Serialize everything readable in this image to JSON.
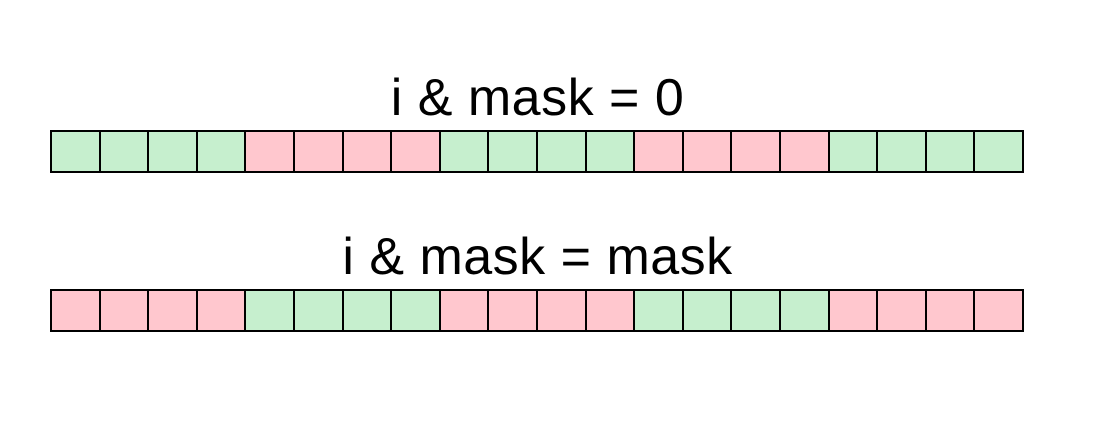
{
  "diagram": {
    "colors": {
      "green": "#c6efce",
      "pink": "#ffc7ce",
      "border": "#000000"
    },
    "rows": [
      {
        "id": "top",
        "label": "i & mask = 0",
        "cells": [
          "green",
          "green",
          "green",
          "green",
          "pink",
          "pink",
          "pink",
          "pink",
          "green",
          "green",
          "green",
          "green",
          "pink",
          "pink",
          "pink",
          "pink",
          "green",
          "green",
          "green",
          "green"
        ]
      },
      {
        "id": "bottom",
        "label": "i & mask = mask",
        "cells": [
          "pink",
          "pink",
          "pink",
          "pink",
          "green",
          "green",
          "green",
          "green",
          "pink",
          "pink",
          "pink",
          "pink",
          "green",
          "green",
          "green",
          "green",
          "pink",
          "pink",
          "pink",
          "pink"
        ]
      }
    ]
  }
}
